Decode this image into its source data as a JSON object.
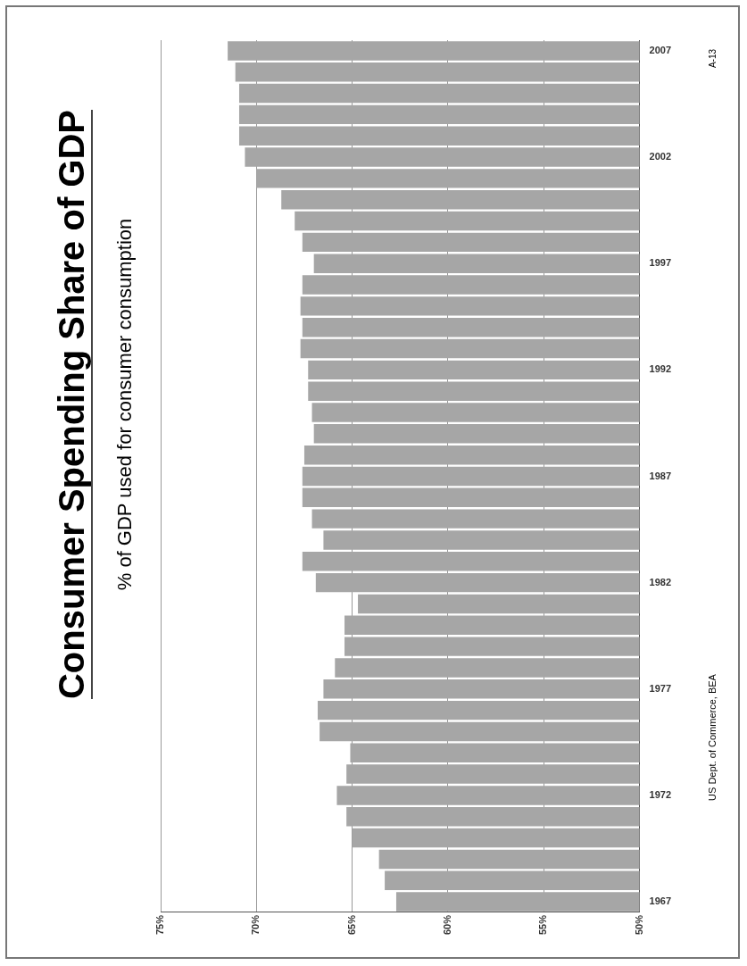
{
  "chart_data": {
    "type": "bar",
    "title": "Consumer Spending Share of GDP",
    "subtitle": "% of GDP used for consumer consumption",
    "orientation": "horizontal",
    "categories": [
      "2007",
      null,
      null,
      null,
      null,
      "2002",
      null,
      null,
      null,
      null,
      "1997",
      null,
      null,
      null,
      null,
      "1992",
      null,
      null,
      null,
      null,
      "1987",
      null,
      null,
      null,
      null,
      "1982",
      null,
      null,
      null,
      null,
      "1977",
      null,
      null,
      null,
      null,
      "1972",
      null,
      null,
      null,
      null,
      "1967"
    ],
    "values": [
      71.5,
      71.1,
      70.9,
      70.9,
      70.9,
      70.6,
      70.0,
      68.7,
      68.0,
      67.6,
      67.0,
      67.6,
      67.7,
      67.6,
      67.7,
      67.3,
      67.3,
      67.1,
      67.0,
      67.5,
      67.6,
      67.6,
      67.1,
      66.5,
      67.6,
      66.9,
      64.7,
      65.4,
      65.4,
      65.9,
      66.5,
      66.8,
      66.7,
      65.1,
      65.3,
      65.8,
      65.3,
      65.0,
      63.6,
      63.3,
      62.7
    ],
    "color": "#a6a6a6",
    "xlim": [
      75,
      50
    ],
    "xticks": [
      {
        "value": 75,
        "label": "75%"
      },
      {
        "value": 70,
        "label": "70%"
      },
      {
        "value": 65,
        "label": "65%"
      },
      {
        "value": 60,
        "label": "60%"
      },
      {
        "value": 55,
        "label": "55%"
      },
      {
        "value": 50,
        "label": "50%"
      }
    ],
    "grid": "x",
    "legend": false,
    "annotations": [
      "US Dept. of Commerce, BEA",
      "A-13"
    ]
  }
}
